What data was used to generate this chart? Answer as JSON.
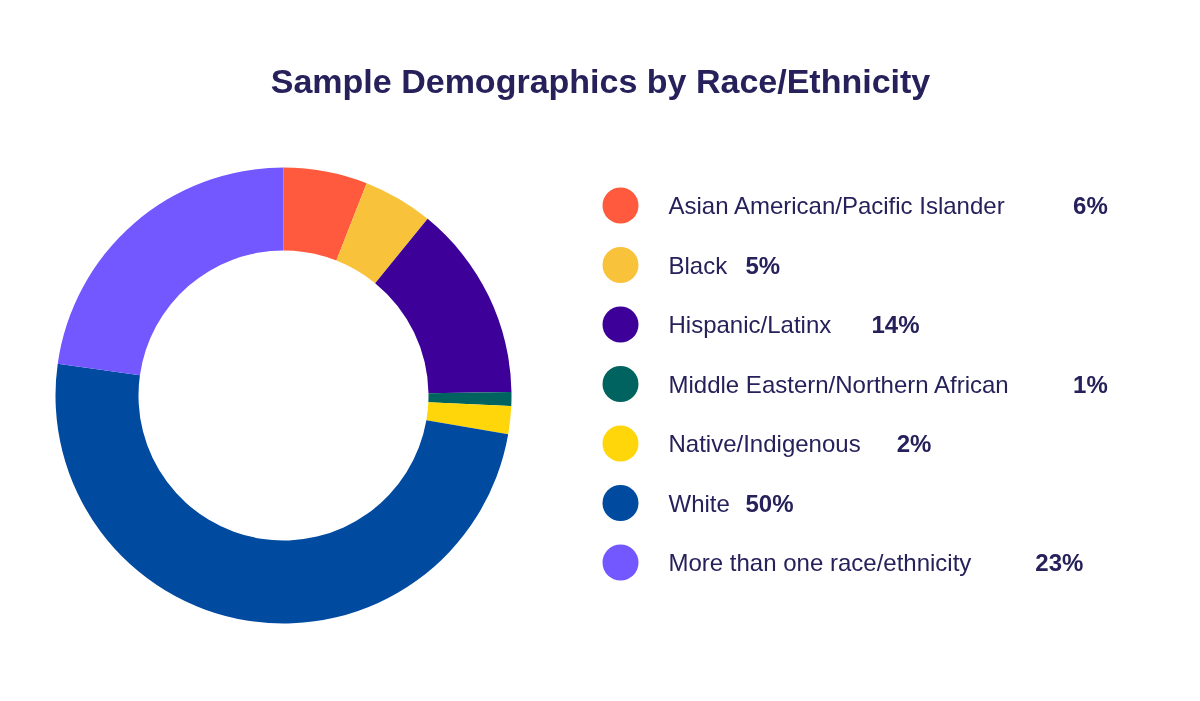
{
  "chart_data": {
    "type": "donut",
    "title": "Sample Demographics by Race/Ethnicity",
    "categories": [
      "Asian American/Pacific Islander",
      "Black",
      "Hispanic/Latinx",
      "Middle Eastern/Northern African",
      "Native/Indigenous",
      "White",
      "More than one race/ethnicity"
    ],
    "values": [
      6,
      5,
      14,
      1,
      2,
      50,
      23
    ],
    "colors": [
      "#ff5a3d",
      "#f8c23a",
      "#3d0099",
      "#00635f",
      "#ffd60a",
      "#004a9f",
      "#7357ff"
    ],
    "value_labels": [
      "6%",
      "5%",
      "14%",
      "1%",
      "2%",
      "50%",
      "23%"
    ],
    "legend": "right"
  }
}
